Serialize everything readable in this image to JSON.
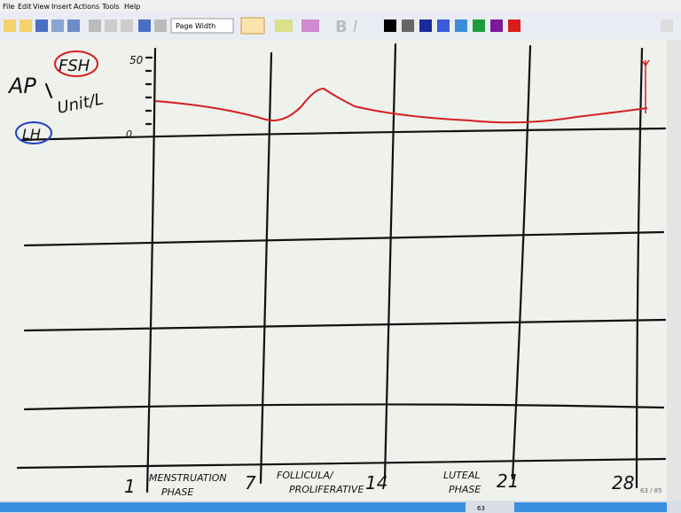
{
  "menu": [
    "File",
    "Edit",
    "View",
    "Insert",
    "Actions",
    "Tools",
    "Help"
  ],
  "toolbar": {
    "zoom": "Page Width"
  },
  "notes": {
    "ap": "AP",
    "fsh": "FSH",
    "lh": "LH",
    "unit": "Unit/L",
    "y_max": "50",
    "y_min": "0",
    "days": [
      "1",
      "7",
      "14",
      "21",
      "28"
    ],
    "phases": [
      {
        "lines": [
          "MENSTRUATION",
          "PHASE"
        ]
      },
      {
        "lines": [
          "FOLLICULA/",
          "PROLIFERATIVE"
        ]
      },
      {
        "lines": [
          "LUTEAL",
          "PHASE"
        ]
      }
    ]
  },
  "status": {
    "page": "63 / 85",
    "page_number": "63"
  }
}
